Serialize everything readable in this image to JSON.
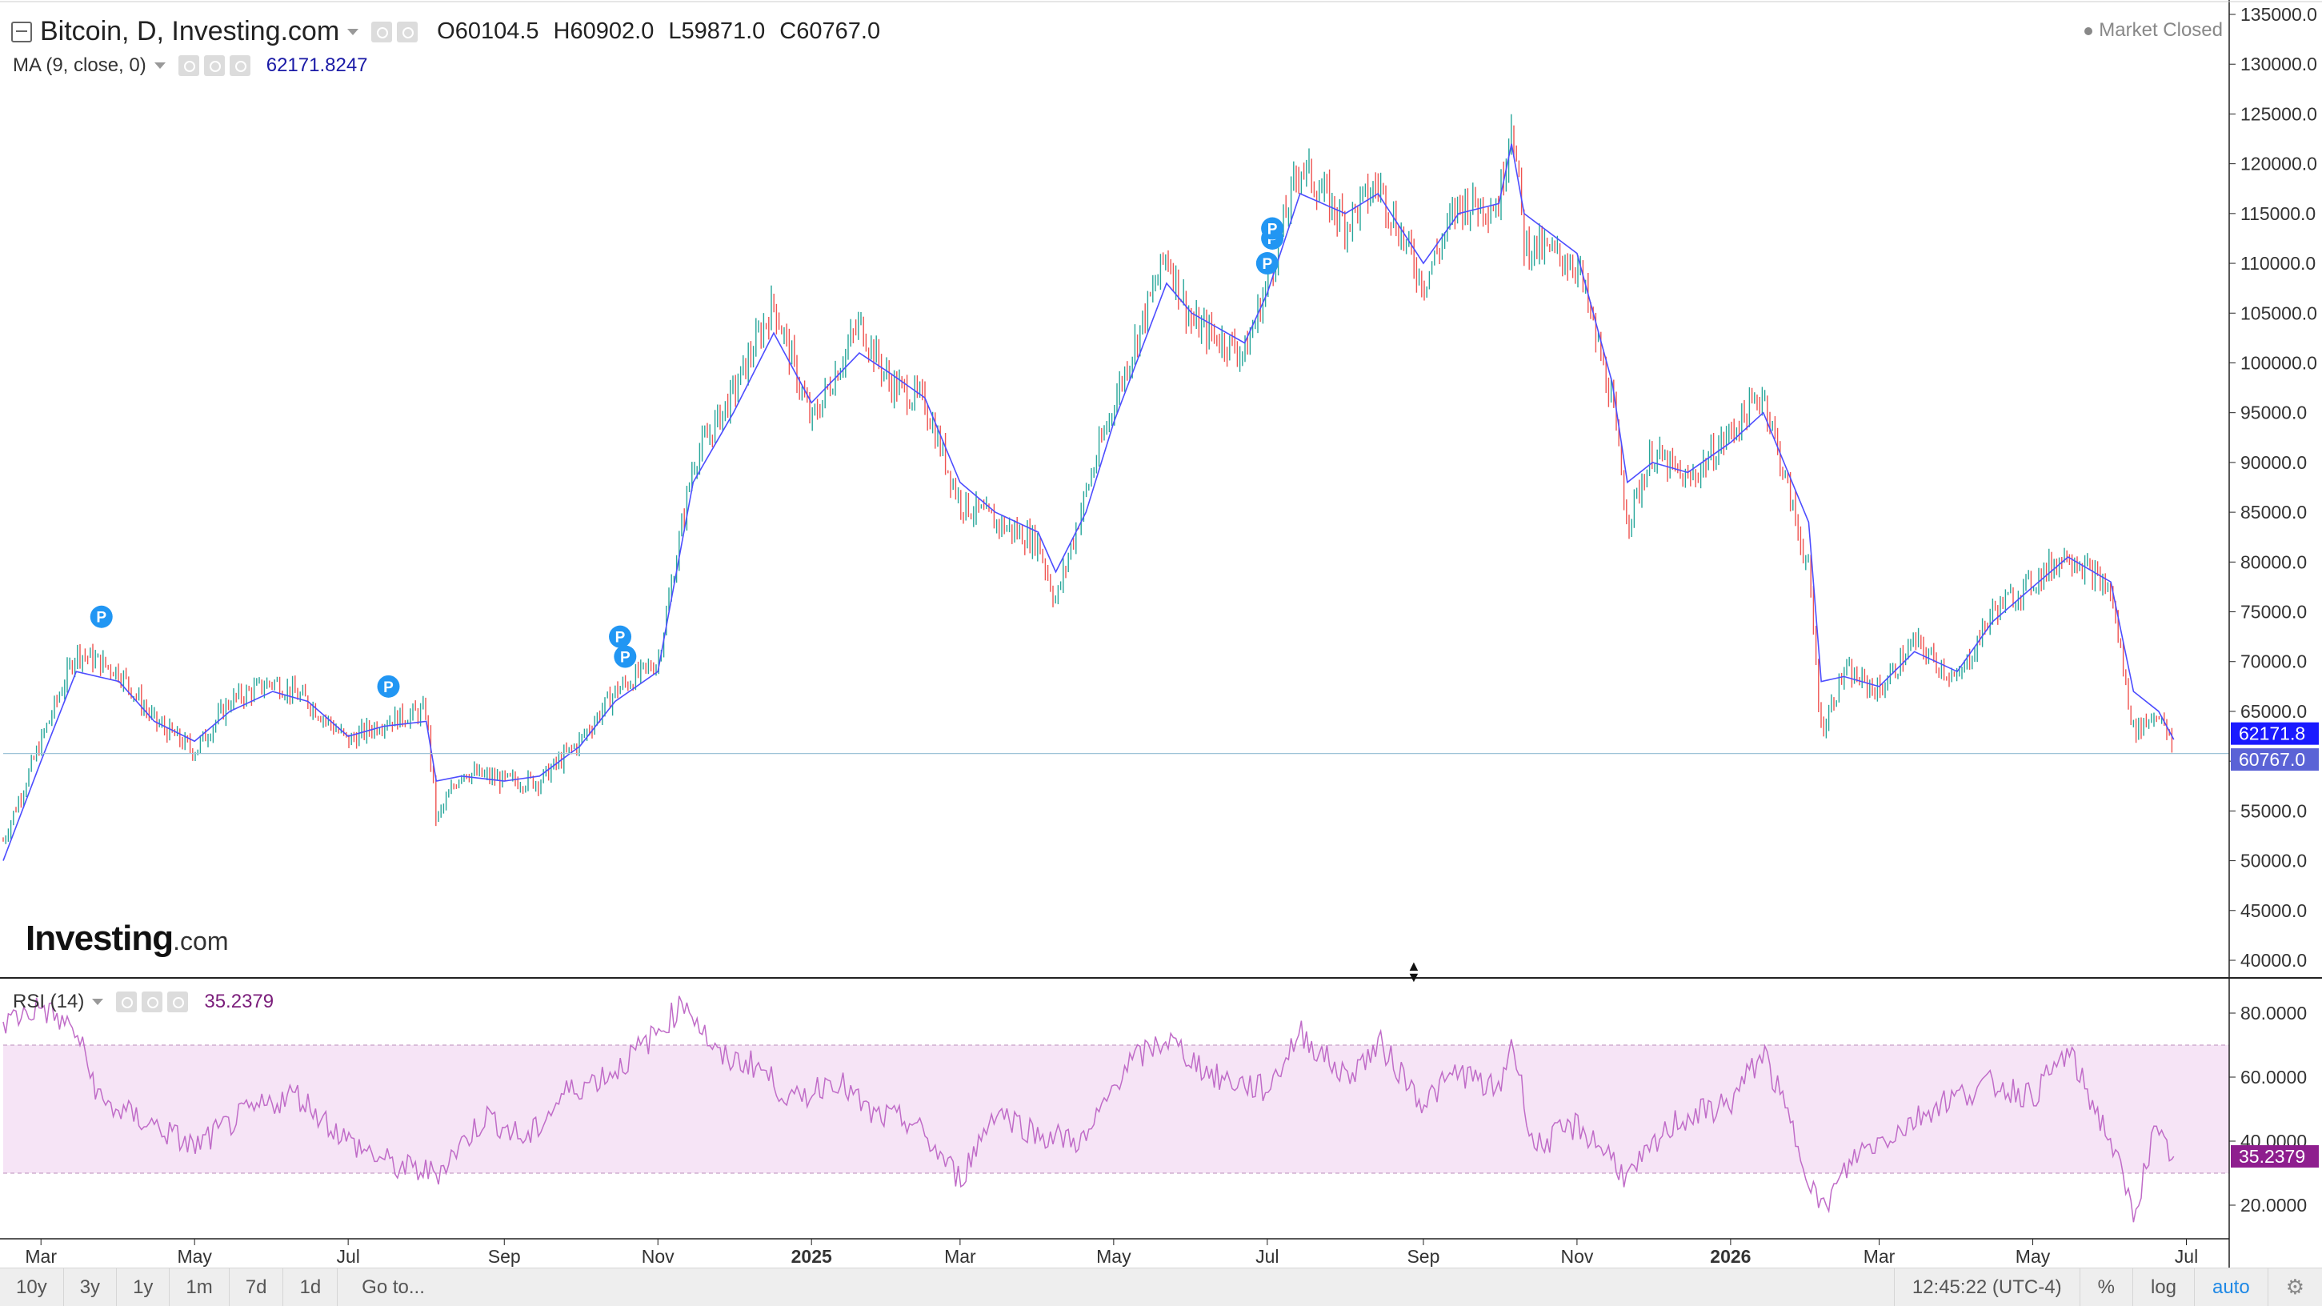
{
  "header": {
    "title": "Bitcoin, D, Investing.com",
    "ohlc": [
      {
        "key": "O",
        "value": "60104.5"
      },
      {
        "key": "H",
        "value": "60902.0"
      },
      {
        "key": "L",
        "value": "59871.0"
      },
      {
        "key": "C",
        "value": "60767.0"
      }
    ],
    "market_status": "Market Closed"
  },
  "ma": {
    "label": "MA (9, close, 0)",
    "value": "62171.8247",
    "badge": "62171.8"
  },
  "rsi": {
    "label": "RSI (14)",
    "value": "35.2379",
    "badge": "35.2379"
  },
  "last_price_badge": "60767.0",
  "logo": {
    "main": "Investing",
    "suffix": ".com"
  },
  "bottom_bar": {
    "ranges": [
      "10y",
      "3y",
      "1y",
      "1m",
      "7d",
      "1d"
    ],
    "goto": "Go to...",
    "time": "12:45:22 (UTC-4)",
    "percent": "%",
    "log": "log",
    "auto": "auto"
  },
  "colors": {
    "up": "#26a69a",
    "down": "#ef5350",
    "ma_line": "#4d4dff",
    "rsi_line": "#c06cc8",
    "rsi_band": "#f6e4f6",
    "marker": "#2196f3",
    "ma_badge": "#1a1aff",
    "price_badge": "#5b63d6",
    "rsi_badge": "#8e1e8e"
  },
  "chart_data": [
    {
      "type": "line",
      "subtype": "candlestick-approximation",
      "title": "Bitcoin, D, Investing.com",
      "x": [
        "2024-02-15",
        "2024-03-01",
        "2024-03-15",
        "2024-04-01",
        "2024-04-15",
        "2024-05-01",
        "2024-05-15",
        "2024-06-01",
        "2024-06-15",
        "2024-07-01",
        "2024-07-15",
        "2024-08-01",
        "2024-08-05",
        "2024-08-15",
        "2024-09-01",
        "2024-09-15",
        "2024-10-01",
        "2024-10-15",
        "2024-11-01",
        "2024-11-15",
        "2024-12-01",
        "2024-12-17",
        "2025-01-01",
        "2025-01-20",
        "2025-02-01",
        "2025-02-15",
        "2025-03-01",
        "2025-03-15",
        "2025-04-01",
        "2025-04-08",
        "2025-04-20",
        "2025-05-01",
        "2025-05-22",
        "2025-06-01",
        "2025-06-22",
        "2025-07-01",
        "2025-07-14",
        "2025-08-01",
        "2025-08-14",
        "2025-09-01",
        "2025-09-15",
        "2025-10-01",
        "2025-10-06",
        "2025-10-11",
        "2025-11-01",
        "2025-11-15",
        "2025-11-21",
        "2025-12-01",
        "2025-12-15",
        "2026-01-01",
        "2026-01-14",
        "2026-02-01",
        "2026-02-06",
        "2026-02-15",
        "2026-03-01",
        "2026-03-15",
        "2026-04-01",
        "2026-04-15",
        "2026-05-01",
        "2026-05-15",
        "2026-06-01",
        "2026-06-10",
        "2026-06-20",
        "2026-06-26"
      ],
      "close": [
        52000,
        62000,
        71000,
        69000,
        64000,
        61000,
        66000,
        68000,
        66000,
        62000,
        64000,
        65000,
        54000,
        59000,
        58000,
        58000,
        62000,
        67000,
        70000,
        90000,
        97000,
        106000,
        94000,
        104000,
        98000,
        96000,
        86000,
        84000,
        82000,
        76000,
        87000,
        96000,
        111000,
        104000,
        101000,
        108000,
        120000,
        114000,
        118000,
        108000,
        116000,
        116000,
        125000,
        112000,
        110000,
        96000,
        84000,
        91000,
        88000,
        93000,
        97000,
        79000,
        63000,
        69000,
        67000,
        72000,
        68000,
        75000,
        78000,
        81000,
        77000,
        63000,
        65000,
        60767
      ],
      "ma9": [
        50000,
        60000,
        69000,
        68000,
        64000,
        62000,
        65000,
        67000,
        66000,
        62500,
        63500,
        64000,
        58000,
        58500,
        58000,
        58500,
        61500,
        66000,
        69000,
        88000,
        95000,
        103000,
        96000,
        101000,
        99000,
        96500,
        88000,
        85000,
        83000,
        79000,
        85000,
        94000,
        108000,
        105000,
        102000,
        107000,
        117000,
        115000,
        117000,
        110000,
        115000,
        116000,
        122000,
        115000,
        111000,
        98000,
        88000,
        90000,
        89000,
        92000,
        95000,
        84000,
        68000,
        68500,
        67500,
        71000,
        69000,
        74000,
        77500,
        80500,
        78000,
        67000,
        65000,
        62171.8
      ],
      "ylim": [
        40000,
        135000
      ],
      "ticks_y": [
        40000,
        45000,
        50000,
        55000,
        60000,
        65000,
        70000,
        75000,
        80000,
        85000,
        90000,
        95000,
        100000,
        105000,
        110000,
        115000,
        120000,
        125000,
        130000,
        135000
      ],
      "ticks_x": [
        "Mar",
        "May",
        "Jul",
        "Sep",
        "Nov",
        "2025",
        "Mar",
        "May",
        "Jul",
        "Sep",
        "Nov",
        "2026",
        "Mar",
        "May",
        "Jul"
      ],
      "tick_dates": [
        "2024-03-01",
        "2024-05-01",
        "2024-07-01",
        "2024-09-01",
        "2024-11-01",
        "2025-01-01",
        "2025-03-01",
        "2025-05-01",
        "2025-07-01",
        "2025-09-01",
        "2025-11-01",
        "2026-01-01",
        "2026-03-01",
        "2026-05-01",
        "2026-07-01"
      ],
      "markers": [
        {
          "label": "P",
          "date": "2024-03-25",
          "value": 74500
        },
        {
          "label": "P",
          "date": "2024-07-17",
          "value": 67500
        },
        {
          "label": "P",
          "date": "2024-10-17",
          "value": 72500
        },
        {
          "label": "P",
          "date": "2024-10-19",
          "value": 70500
        },
        {
          "label": "P",
          "date": "2025-07-01",
          "value": 110000
        },
        {
          "label": "P",
          "date": "2025-07-03",
          "value": 112500
        },
        {
          "label": "P",
          "date": "2025-07-03",
          "value": 113500
        }
      ],
      "price_line": 60767,
      "grid": false
    },
    {
      "type": "line",
      "title": "RSI (14)",
      "x": [
        "2024-02-15",
        "2024-03-01",
        "2024-03-15",
        "2024-03-25",
        "2024-04-15",
        "2024-05-01",
        "2024-05-20",
        "2024-06-10",
        "2024-07-01",
        "2024-07-20",
        "2024-08-05",
        "2024-08-25",
        "2024-09-10",
        "2024-09-25",
        "2024-10-15",
        "2024-11-01",
        "2024-11-12",
        "2024-11-25",
        "2024-12-10",
        "2024-12-25",
        "2025-01-10",
        "2025-01-25",
        "2025-02-10",
        "2025-03-01",
        "2025-03-15",
        "2025-04-01",
        "2025-04-20",
        "2025-05-05",
        "2025-05-22",
        "2025-06-10",
        "2025-07-01",
        "2025-07-14",
        "2025-08-01",
        "2025-08-15",
        "2025-09-01",
        "2025-09-15",
        "2025-10-01",
        "2025-10-06",
        "2025-10-15",
        "2025-11-01",
        "2025-11-15",
        "2025-11-21",
        "2025-12-10",
        "2026-01-01",
        "2026-01-14",
        "2026-02-01",
        "2026-02-06",
        "2026-02-20",
        "2026-03-10",
        "2026-03-25",
        "2026-04-15",
        "2026-05-01",
        "2026-05-15",
        "2026-06-01",
        "2026-06-10",
        "2026-06-18",
        "2026-06-26"
      ],
      "values": [
        77,
        82,
        74,
        52,
        45,
        38,
        48,
        55,
        40,
        32,
        30,
        48,
        40,
        55,
        62,
        74,
        84,
        66,
        64,
        52,
        60,
        48,
        46,
        28,
        50,
        42,
        40,
        63,
        72,
        60,
        56,
        74,
        60,
        70,
        52,
        62,
        55,
        72,
        38,
        45,
        35,
        28,
        46,
        52,
        68,
        30,
        18,
        36,
        44,
        52,
        58,
        54,
        68,
        40,
        17,
        42,
        35.24
      ],
      "ylim": [
        10,
        90
      ],
      "ticks_y": [
        20,
        40,
        60,
        80
      ],
      "tick_labels_y": [
        "20.0000",
        "40.0000",
        "60.0000",
        "80.0000"
      ],
      "band": [
        30,
        70
      ]
    }
  ]
}
